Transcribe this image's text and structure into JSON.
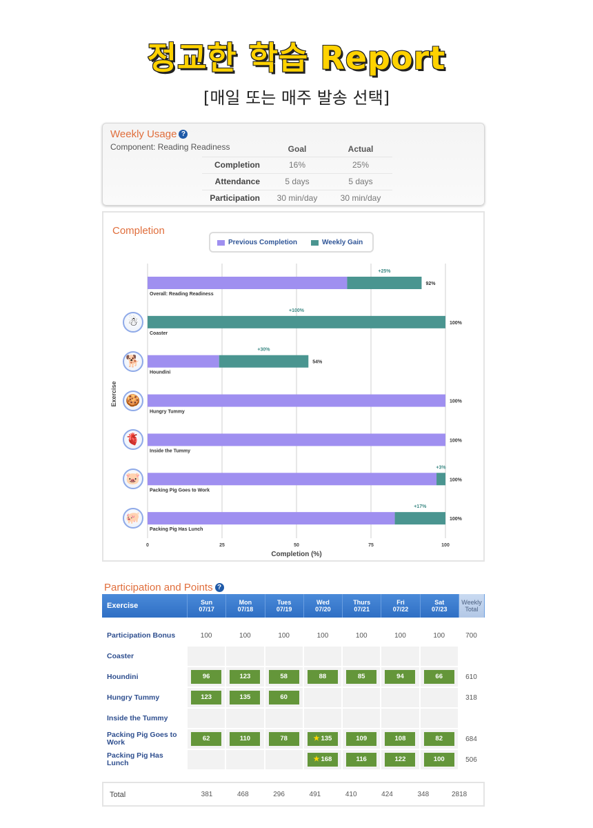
{
  "hero": {
    "title": "정교한 학습 Report",
    "subtitle": "[매일 또는 매주 발송 선택]"
  },
  "weekly_usage": {
    "title": "Weekly Usage",
    "component": "Component: Reading Readiness",
    "columns": [
      "Goal",
      "Actual"
    ],
    "rows": [
      {
        "label": "Completion",
        "goal": "16%",
        "actual": "25%"
      },
      {
        "label": "Attendance",
        "goal": "5 days",
        "actual": "5 days"
      },
      {
        "label": "Participation",
        "goal": "30 min/day",
        "actual": "30 min/day"
      }
    ]
  },
  "completion_chart": {
    "title": "Completion",
    "icon_names": [
      "overall",
      "coaster-icon",
      "houndini-icon",
      "hungry-tummy-icon",
      "inside-tummy-icon",
      "packing-pig-work-icon",
      "packing-pig-lunch-icon"
    ]
  },
  "chart_data": {
    "type": "bar",
    "orientation": "horizontal",
    "stacked": true,
    "categories": [
      "Overall: Reading Readiness",
      "Coaster",
      "Houndini",
      "Hungry Tummy",
      "Inside the Tummy",
      "Packing Pig Goes to Work",
      "Packing Pig Has Lunch"
    ],
    "series": [
      {
        "name": "Previous Completion",
        "color": "#9f8ff0",
        "values": [
          67,
          0,
          24,
          100,
          100,
          97,
          83
        ]
      },
      {
        "name": "Weekly Gain",
        "color": "#4a9590",
        "values": [
          25,
          100,
          30,
          0,
          0,
          3,
          17
        ]
      }
    ],
    "gain_labels": [
      "+25%",
      "+100%",
      "+30%",
      "",
      "",
      "+3%",
      "+17%"
    ],
    "total_labels": [
      "92%",
      "100%",
      "54%",
      "100%",
      "100%",
      "100%",
      "100%"
    ],
    "xlabel": "Completion (%)",
    "ylabel": "Exercise",
    "xticks": [
      0,
      25,
      50,
      75,
      100
    ],
    "xlim": [
      0,
      100
    ],
    "grid": true,
    "legend": "top"
  },
  "participation": {
    "title": "Participation and Points",
    "header": {
      "exercise": "Exercise",
      "days": [
        {
          "day": "Sun",
          "date": "07/17"
        },
        {
          "day": "Mon",
          "date": "07/18"
        },
        {
          "day": "Tues",
          "date": "07/19"
        },
        {
          "day": "Wed",
          "date": "07/20"
        },
        {
          "day": "Thurs",
          "date": "07/21"
        },
        {
          "day": "Fri",
          "date": "07/22"
        },
        {
          "day": "Sat",
          "date": "07/23"
        }
      ],
      "weekly": "Weekly",
      "total": "Total"
    },
    "rows": [
      {
        "name": "Participation Bonus",
        "plain": true,
        "cells": [
          "100",
          "100",
          "100",
          "100",
          "100",
          "100",
          "100"
        ],
        "total": "700"
      },
      {
        "name": "Coaster",
        "cells": [
          "",
          "",
          "",
          "",
          "",
          "",
          ""
        ],
        "total": ""
      },
      {
        "name": "Houndini",
        "cells": [
          "96",
          "123",
          "58",
          "88",
          "85",
          "94",
          "66"
        ],
        "total": "610"
      },
      {
        "name": "Hungry Tummy",
        "cells": [
          "123",
          "135",
          "60",
          "",
          "",
          "",
          ""
        ],
        "total": "318"
      },
      {
        "name": "Inside the Tummy",
        "cells": [
          "",
          "",
          "",
          "",
          "",
          "",
          ""
        ],
        "total": ""
      },
      {
        "name": "Packing Pig Goes to Work",
        "cells": [
          "62",
          "110",
          "78",
          "★135",
          "109",
          "108",
          "82"
        ],
        "total": "684"
      },
      {
        "name": "Packing Pig Has Lunch",
        "cells": [
          "",
          "",
          "",
          "★168",
          "116",
          "122",
          "100"
        ],
        "total": "506"
      }
    ],
    "totals": {
      "label": "Total",
      "values": [
        "381",
        "468",
        "296",
        "491",
        "410",
        "424",
        "348"
      ],
      "grand": "2818"
    }
  }
}
